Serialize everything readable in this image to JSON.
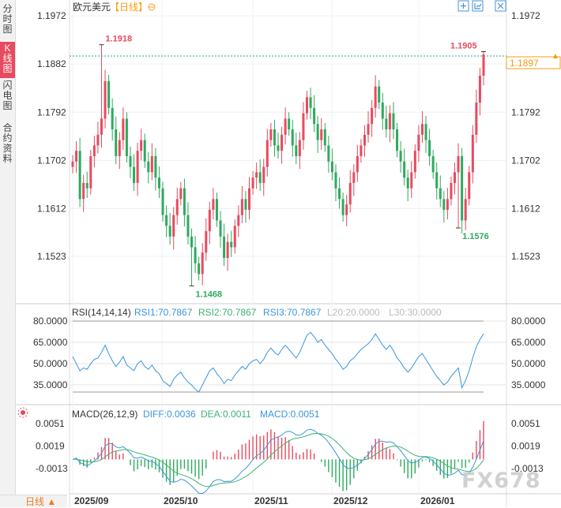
{
  "sidebar": {
    "tabs": [
      {
        "label": "分时图",
        "active": false
      },
      {
        "label": "K线图",
        "active": true
      },
      {
        "label": "闪电图",
        "active": false
      },
      {
        "label": "合约资料",
        "active": false
      }
    ]
  },
  "header": {
    "symbol": "欧元美元",
    "period": "【日线】",
    "icons": [
      "zoom-in-icon",
      "layout-icon",
      "fullscreen-icon"
    ]
  },
  "bottom": {
    "period_label": "日线 ▲"
  },
  "watermark": "FX678",
  "colors": {
    "up": "#e84a5f",
    "down": "#2eaa5e",
    "rsi": "#3a96dd",
    "diff": "#3a96dd",
    "dea": "#3cb371",
    "dash": "#2aa198",
    "price_tag": "#f39c12"
  },
  "chart_data": [
    {
      "type": "candlestick",
      "y_ticks": [
        "1.1972",
        "1.1882",
        "1.1792",
        "1.1702",
        "1.1612",
        "1.1523"
      ],
      "ylim": [
        1.1447,
        1.2003
      ],
      "x_ticks": [
        "2025/09",
        "2025/10",
        "2025/11",
        "2025/12",
        "2026/01"
      ],
      "current_price": "1.1897",
      "annotations": [
        {
          "label": "1.1918",
          "value": 1.1918,
          "index": 8
        },
        {
          "label": "1.1468",
          "value": 1.1468,
          "index": 33
        },
        {
          "label": "1.1905",
          "value": 1.1905,
          "index": 114
        },
        {
          "label": "1.1576",
          "value": 1.1576,
          "index": 107
        }
      ],
      "closes": [
        1.17,
        1.172,
        1.163,
        1.166,
        1.165,
        1.171,
        1.173,
        1.175,
        1.178,
        1.185,
        1.18,
        1.176,
        1.171,
        1.174,
        1.178,
        1.171,
        1.169,
        1.166,
        1.172,
        1.174,
        1.17,
        1.168,
        1.171,
        1.167,
        1.165,
        1.16,
        1.158,
        1.156,
        1.16,
        1.163,
        1.165,
        1.16,
        1.156,
        1.154,
        1.151,
        1.149,
        1.153,
        1.157,
        1.161,
        1.163,
        1.159,
        1.156,
        1.152,
        1.155,
        1.154,
        1.158,
        1.16,
        1.163,
        1.161,
        1.165,
        1.167,
        1.168,
        1.166,
        1.169,
        1.174,
        1.176,
        1.173,
        1.172,
        1.175,
        1.178,
        1.176,
        1.173,
        1.171,
        1.174,
        1.179,
        1.182,
        1.18,
        1.177,
        1.174,
        1.176,
        1.173,
        1.17,
        1.168,
        1.165,
        1.163,
        1.16,
        1.162,
        1.166,
        1.168,
        1.171,
        1.173,
        1.175,
        1.177,
        1.18,
        1.184,
        1.181,
        1.178,
        1.176,
        1.179,
        1.176,
        1.172,
        1.17,
        1.167,
        1.165,
        1.168,
        1.172,
        1.175,
        1.177,
        1.174,
        1.171,
        1.168,
        1.165,
        1.163,
        1.161,
        1.163,
        1.166,
        1.168,
        1.171,
        1.159,
        1.163,
        1.168,
        1.175,
        1.181,
        1.186,
        1.19
      ],
      "rsi": {
        "label": "RSI(14,14,14)",
        "rsi1": "RSI1:70.7867",
        "rsi2": "RSI2:70.7867",
        "rsi3": "RSI3:70.7867",
        "l20": "L20:20.0000",
        "l30": "L30:30.0000",
        "y_ticks": [
          "80.0000",
          "65.0000",
          "50.0000",
          "35.0000"
        ],
        "ylim": [
          27,
          84
        ],
        "values": [
          55,
          50,
          45,
          47,
          46,
          50,
          53,
          54,
          58,
          63,
          57,
          52,
          48,
          51,
          55,
          49,
          47,
          45,
          50,
          52,
          48,
          46,
          49,
          45,
          43,
          38,
          36,
          34,
          39,
          42,
          44,
          40,
          37,
          35,
          32,
          30,
          35,
          40,
          45,
          47,
          43,
          40,
          36,
          39,
          38,
          42,
          45,
          48,
          46,
          50,
          52,
          53,
          50,
          53,
          58,
          61,
          58,
          56,
          60,
          63,
          60,
          57,
          54,
          58,
          64,
          70,
          72,
          69,
          65,
          67,
          63,
          60,
          57,
          53,
          50,
          46,
          48,
          52,
          54,
          57,
          60,
          62,
          64,
          67,
          71,
          67,
          63,
          60,
          63,
          59,
          54,
          51,
          47,
          44,
          47,
          51,
          55,
          57,
          53,
          49,
          45,
          41,
          38,
          35,
          37,
          41,
          44,
          47,
          33,
          38,
          45,
          54,
          62,
          67,
          71
        ]
      },
      "macd": {
        "label": "MACD(26,12,9)",
        "diff_label": "DIFF:0.0036",
        "dea_label": "DEA:0.0011",
        "macd_label": "MACD:0.0051",
        "y_ticks": [
          "0.0051",
          "0.0019",
          "-0.0013"
        ],
        "ylim": [
          -0.0046,
          0.0066
        ]
      }
    }
  ]
}
